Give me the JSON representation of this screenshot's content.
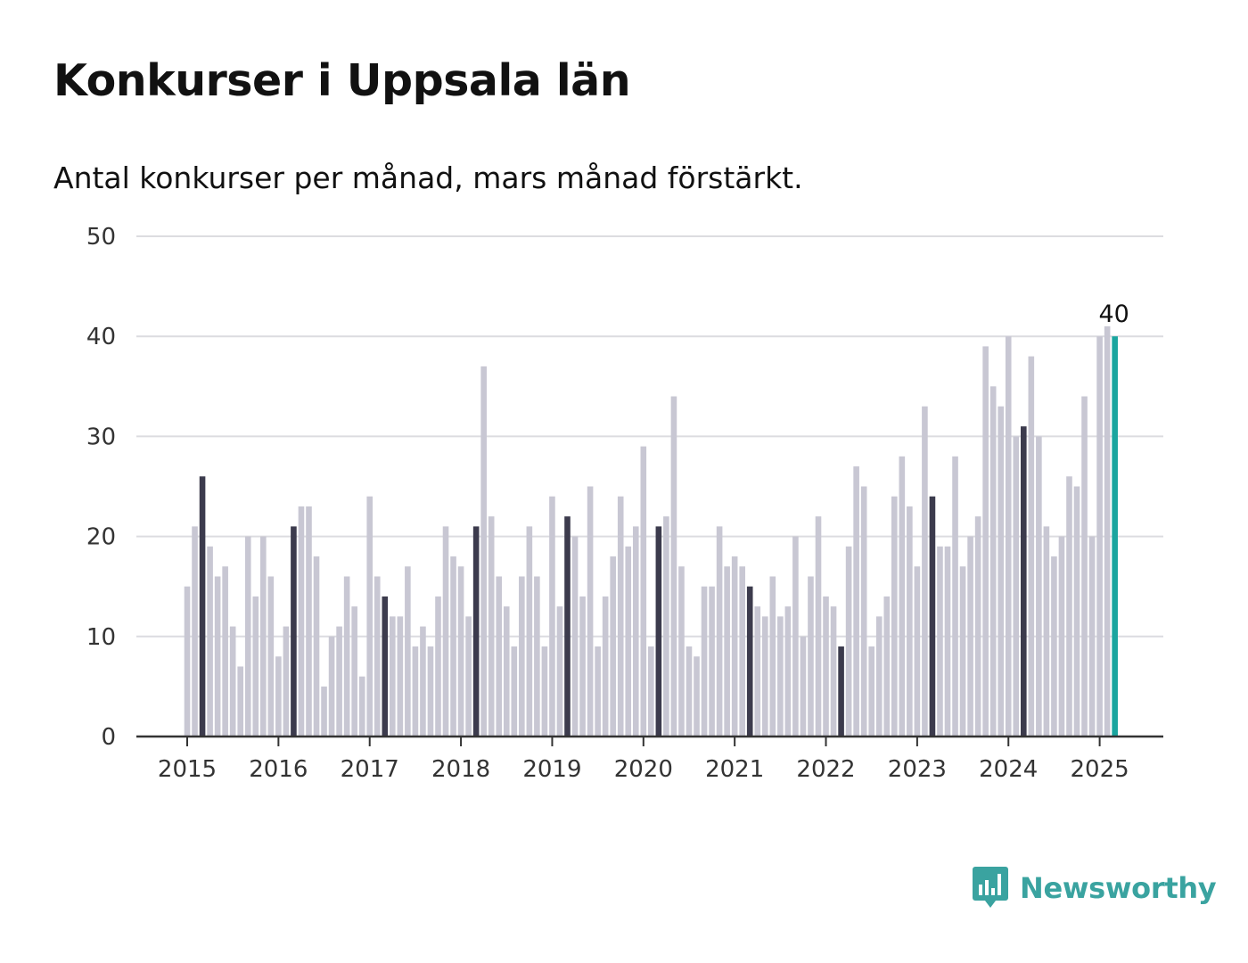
{
  "title": "Konkurser i Uppsala län",
  "subtitle": "Antal konkurser per månad, mars månad förstärkt.",
  "brand": {
    "name": "Newsworthy",
    "icon": "newsworthy-logo-icon"
  },
  "colors": {
    "bar_default": "#c8c7d3",
    "bar_highlight": "#3c3b4d",
    "bar_latest": "#1aa59f",
    "grid": "#dcdce0",
    "axis": "#333333",
    "brand": "#3aa3a0"
  },
  "chart_data": {
    "type": "bar",
    "x_start": "2015-01",
    "x_end": "2025-03",
    "x_tick_labels": [
      "2015",
      "2016",
      "2017",
      "2018",
      "2019",
      "2020",
      "2021",
      "2022",
      "2023",
      "2024",
      "2025"
    ],
    "y_ticks": [
      0,
      10,
      20,
      30,
      40,
      50
    ],
    "ylim": [
      0,
      50
    ],
    "grid": true,
    "highlight_month": "mars",
    "values": [
      15,
      21,
      26,
      19,
      16,
      17,
      11,
      7,
      20,
      14,
      20,
      16,
      8,
      11,
      21,
      23,
      23,
      18,
      5,
      10,
      11,
      16,
      13,
      6,
      24,
      16,
      14,
      12,
      12,
      17,
      9,
      11,
      9,
      14,
      21,
      18,
      17,
      12,
      21,
      37,
      22,
      16,
      13,
      9,
      16,
      21,
      16,
      9,
      24,
      13,
      22,
      20,
      14,
      25,
      9,
      14,
      18,
      24,
      19,
      21,
      29,
      9,
      21,
      22,
      34,
      17,
      9,
      8,
      15,
      15,
      21,
      17,
      18,
      17,
      15,
      13,
      12,
      16,
      12,
      13,
      20,
      10,
      16,
      22,
      14,
      13,
      9,
      19,
      27,
      25,
      9,
      12,
      14,
      24,
      28,
      23,
      17,
      33,
      24,
      19,
      19,
      28,
      17,
      20,
      22,
      39,
      35,
      33,
      40,
      30,
      31,
      38,
      30,
      21,
      18,
      20,
      26,
      25,
      34,
      20,
      40,
      41,
      40
    ],
    "last_value_label": "40"
  }
}
